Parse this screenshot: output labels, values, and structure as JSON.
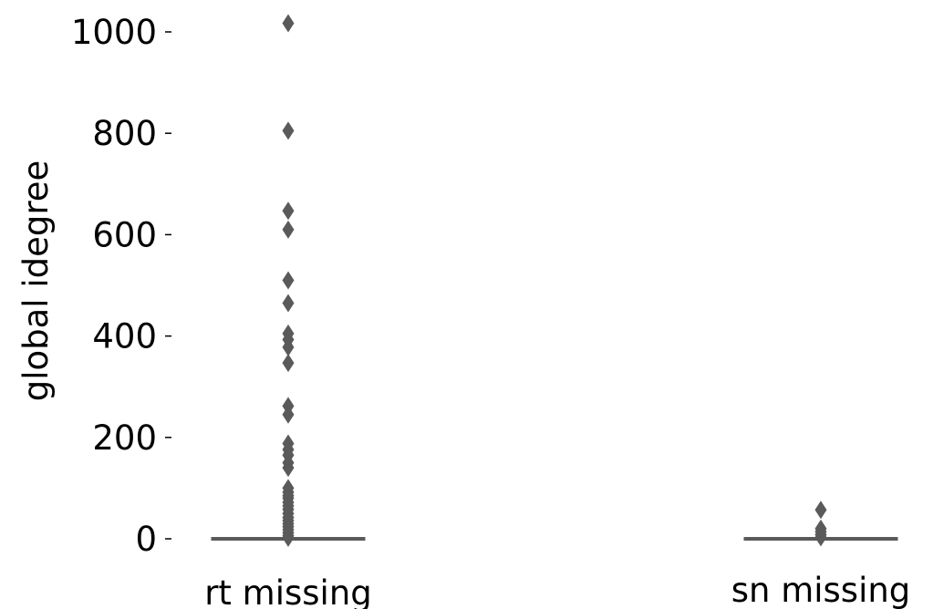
{
  "chart_data": {
    "type": "box",
    "title": "",
    "xlabel": "",
    "ylabel": "global idegree",
    "categories": [
      "rt missing",
      "sn missing"
    ],
    "yticks": [
      0,
      200,
      400,
      600,
      800,
      1000
    ],
    "ytick_labels": [
      "0",
      "200",
      "400",
      "600",
      "800",
      "1000"
    ],
    "ylim": [
      0,
      1020
    ],
    "grid": false,
    "colors": {
      "box": "#5a5a5a",
      "marker": "#5a5a5a",
      "text": "#000000"
    },
    "series": [
      {
        "category": "rt missing",
        "q1": 0,
        "median": 0,
        "q3": 0,
        "whisker_low": 0,
        "whisker_high": 0,
        "outliers": [
          1017,
          805,
          647,
          610,
          510,
          465,
          405,
          393,
          378,
          347,
          262,
          245,
          188,
          176,
          165,
          150,
          140,
          100,
          92,
          85,
          80,
          72,
          65,
          58,
          50,
          42,
          36,
          30,
          24,
          18,
          12,
          6,
          2
        ]
      },
      {
        "category": "sn missing",
        "q1": 0,
        "median": 0,
        "q3": 0,
        "whisker_low": 0,
        "whisker_high": 0,
        "outliers": [
          57,
          20,
          14,
          8,
          3
        ]
      }
    ]
  }
}
